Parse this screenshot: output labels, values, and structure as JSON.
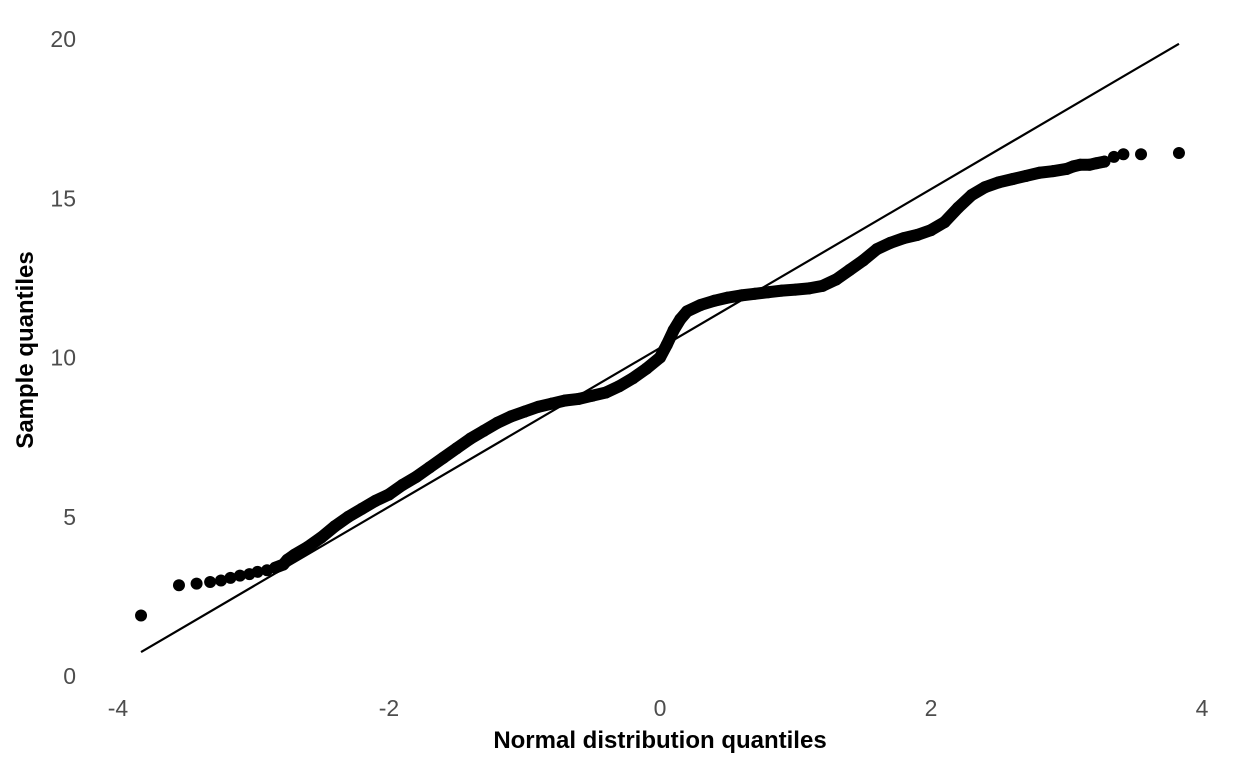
{
  "chart_data": {
    "type": "scatter",
    "title": "",
    "xlabel": "Normal distribution quantiles",
    "ylabel": "Sample quantiles",
    "xlim": [
      -4,
      4
    ],
    "ylim": [
      0,
      20
    ],
    "x_ticks": [
      -4,
      -2,
      0,
      2,
      4
    ],
    "y_ticks": [
      0,
      5,
      10,
      15,
      20
    ],
    "x_tick_labels": [
      "-4",
      "-2",
      "0",
      "2",
      "4"
    ],
    "y_tick_labels": [
      "0",
      "5",
      "10",
      "15",
      "20"
    ],
    "grid": false,
    "legend": "none",
    "colors": {
      "points": "#000000",
      "line": "#000000",
      "ticks": "#4d4d4d"
    },
    "reference_line": {
      "x": [
        -3.83,
        3.83
      ],
      "y": [
        0.75,
        19.85
      ]
    },
    "series": [
      {
        "points": [
          [
            -3.83,
            1.9
          ],
          [
            -3.55,
            2.85
          ],
          [
            -3.42,
            2.9
          ],
          [
            -3.32,
            2.95
          ],
          [
            -3.24,
            3.0
          ],
          [
            -3.17,
            3.08
          ],
          [
            -3.1,
            3.15
          ],
          [
            -3.03,
            3.2
          ],
          [
            -2.97,
            3.27
          ],
          [
            -2.9,
            3.32
          ],
          [
            -2.84,
            3.4
          ],
          [
            -2.78,
            3.5
          ],
          [
            -2.75,
            3.65
          ],
          [
            -2.7,
            3.8
          ],
          [
            -2.6,
            4.05
          ],
          [
            -2.5,
            4.35
          ],
          [
            -2.4,
            4.7
          ],
          [
            -2.3,
            5.0
          ],
          [
            -2.2,
            5.25
          ],
          [
            -2.1,
            5.5
          ],
          [
            -2.0,
            5.7
          ],
          [
            -1.9,
            6.0
          ],
          [
            -1.8,
            6.25
          ],
          [
            -1.7,
            6.55
          ],
          [
            -1.6,
            6.85
          ],
          [
            -1.5,
            7.15
          ],
          [
            -1.4,
            7.45
          ],
          [
            -1.3,
            7.7
          ],
          [
            -1.2,
            7.95
          ],
          [
            -1.1,
            8.15
          ],
          [
            -1.0,
            8.3
          ],
          [
            -0.9,
            8.45
          ],
          [
            -0.8,
            8.55
          ],
          [
            -0.7,
            8.65
          ],
          [
            -0.6,
            8.7
          ],
          [
            -0.5,
            8.8
          ],
          [
            -0.4,
            8.9
          ],
          [
            -0.3,
            9.1
          ],
          [
            -0.2,
            9.35
          ],
          [
            -0.1,
            9.65
          ],
          [
            0.0,
            10.0
          ],
          [
            0.05,
            10.4
          ],
          [
            0.1,
            10.85
          ],
          [
            0.15,
            11.2
          ],
          [
            0.2,
            11.45
          ],
          [
            0.3,
            11.65
          ],
          [
            0.4,
            11.78
          ],
          [
            0.5,
            11.88
          ],
          [
            0.6,
            11.95
          ],
          [
            0.7,
            12.0
          ],
          [
            0.8,
            12.05
          ],
          [
            0.9,
            12.1
          ],
          [
            1.0,
            12.13
          ],
          [
            1.1,
            12.17
          ],
          [
            1.2,
            12.25
          ],
          [
            1.3,
            12.45
          ],
          [
            1.4,
            12.75
          ],
          [
            1.5,
            13.05
          ],
          [
            1.6,
            13.4
          ],
          [
            1.7,
            13.6
          ],
          [
            1.8,
            13.75
          ],
          [
            1.9,
            13.85
          ],
          [
            2.0,
            14.0
          ],
          [
            2.1,
            14.25
          ],
          [
            2.2,
            14.7
          ],
          [
            2.3,
            15.1
          ],
          [
            2.4,
            15.35
          ],
          [
            2.5,
            15.5
          ],
          [
            2.6,
            15.6
          ],
          [
            2.7,
            15.7
          ],
          [
            2.8,
            15.8
          ],
          [
            2.9,
            15.85
          ],
          [
            3.0,
            15.92
          ],
          [
            3.05,
            16.0
          ],
          [
            3.1,
            16.05
          ],
          [
            3.17,
            16.05
          ],
          [
            3.22,
            16.1
          ],
          [
            3.28,
            16.15
          ],
          [
            3.35,
            16.3
          ],
          [
            3.42,
            16.38
          ],
          [
            3.55,
            16.38
          ],
          [
            3.83,
            16.42
          ]
        ]
      }
    ]
  }
}
